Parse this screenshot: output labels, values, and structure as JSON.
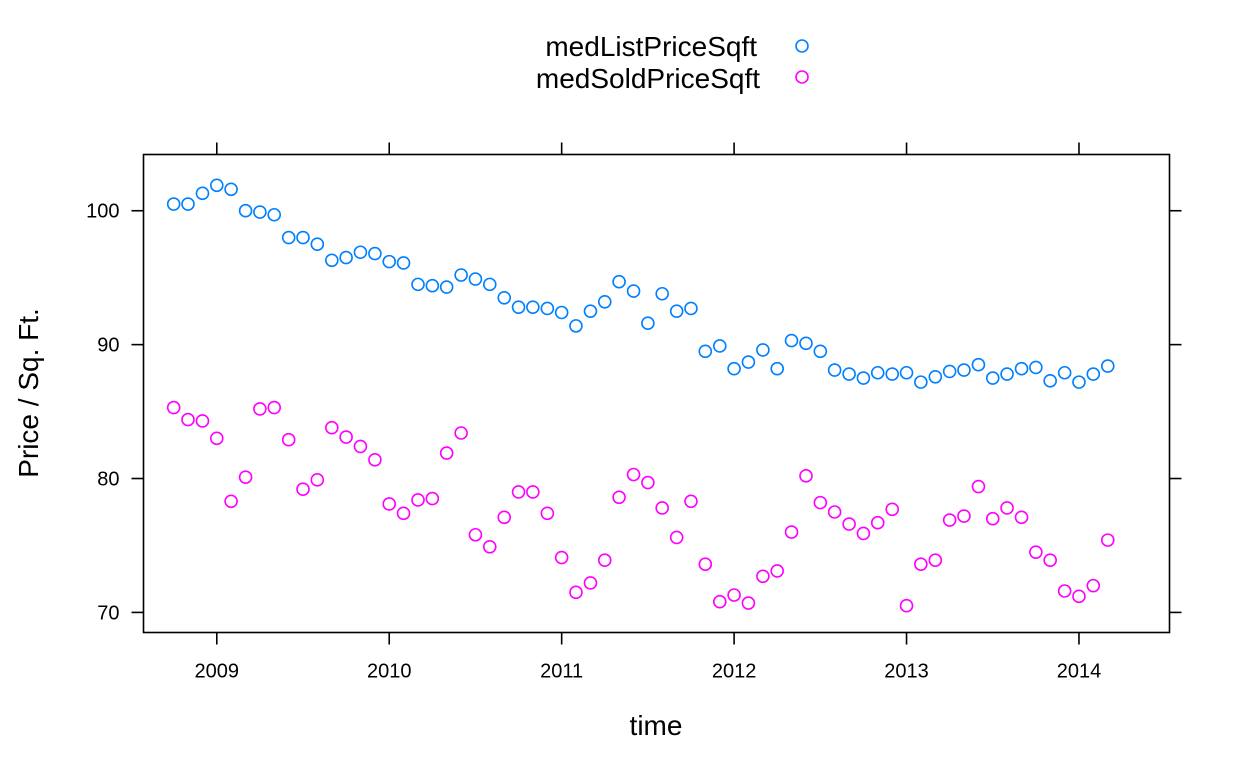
{
  "chart_data": {
    "type": "scatter",
    "title": "",
    "xlabel": "time",
    "ylabel": "Price / Sq. Ft.",
    "xlim": [
      2008.575,
      2014.525
    ],
    "ylim": [
      68.5,
      104.2
    ],
    "x_ticks": [
      2009,
      2010,
      2011,
      2012,
      2013,
      2014
    ],
    "x_tick_labels": [
      "2009",
      "2010",
      "2011",
      "2012",
      "2013",
      "2014"
    ],
    "y_ticks": [
      70,
      80,
      90,
      100
    ],
    "y_tick_labels": [
      "70",
      "80",
      "90",
      "100"
    ],
    "grid": false,
    "legend_position": "top",
    "x": [
      2008.75,
      2008.833,
      2008.917,
      2009.0,
      2009.083,
      2009.167,
      2009.25,
      2009.333,
      2009.417,
      2009.5,
      2009.583,
      2009.667,
      2009.75,
      2009.833,
      2009.917,
      2010.0,
      2010.083,
      2010.167,
      2010.25,
      2010.333,
      2010.417,
      2010.5,
      2010.583,
      2010.667,
      2010.75,
      2010.833,
      2010.917,
      2011.0,
      2011.083,
      2011.167,
      2011.25,
      2011.333,
      2011.417,
      2011.5,
      2011.583,
      2011.667,
      2011.75,
      2011.833,
      2011.917,
      2012.0,
      2012.083,
      2012.167,
      2012.25,
      2012.333,
      2012.417,
      2012.5,
      2012.583,
      2012.667,
      2012.75,
      2012.833,
      2012.917,
      2013.0,
      2013.083,
      2013.167,
      2013.25,
      2013.333,
      2013.417,
      2013.5,
      2013.583,
      2013.667,
      2013.75,
      2013.833,
      2013.917,
      2014.0,
      2014.083,
      2014.167
    ],
    "series": [
      {
        "name": "medListPriceSqft",
        "color": "#0080ff",
        "values": [
          100.5,
          100.5,
          101.3,
          101.9,
          101.6,
          100.0,
          99.9,
          99.7,
          98.0,
          98.0,
          97.5,
          96.3,
          96.5,
          96.9,
          96.8,
          96.2,
          96.1,
          94.5,
          94.4,
          94.3,
          95.2,
          94.9,
          94.5,
          93.5,
          92.8,
          92.8,
          92.7,
          92.4,
          91.4,
          92.5,
          93.2,
          94.7,
          94.0,
          91.6,
          93.8,
          92.5,
          92.7,
          89.5,
          89.9,
          88.2,
          88.7,
          89.6,
          88.2,
          90.3,
          90.1,
          89.5,
          88.1,
          87.8,
          87.5,
          87.9,
          87.8,
          87.9,
          87.2,
          87.6,
          88.0,
          88.1,
          88.5,
          87.5,
          87.8,
          88.2,
          88.3,
          87.3,
          87.9,
          87.2,
          87.8,
          88.4
        ]
      },
      {
        "name": "medSoldPriceSqft",
        "color": "#ff00ff",
        "values": [
          85.3,
          84.4,
          84.3,
          83.0,
          78.3,
          80.1,
          85.2,
          85.3,
          82.9,
          79.2,
          79.9,
          83.8,
          83.1,
          82.4,
          81.4,
          78.1,
          77.4,
          78.4,
          78.5,
          81.9,
          83.4,
          75.8,
          74.9,
          77.1,
          79.0,
          79.0,
          77.4,
          74.1,
          71.5,
          72.2,
          73.9,
          78.6,
          80.3,
          79.7,
          77.8,
          75.6,
          78.3,
          73.6,
          70.8,
          71.3,
          70.7,
          72.7,
          73.1,
          76.0,
          80.2,
          78.2,
          77.5,
          76.6,
          75.9,
          76.7,
          77.7,
          70.5,
          73.6,
          73.9,
          76.9,
          77.2,
          79.4,
          77.0,
          77.8,
          77.1,
          74.5,
          73.9,
          71.6,
          71.2,
          72.0,
          75.4
        ]
      }
    ]
  }
}
